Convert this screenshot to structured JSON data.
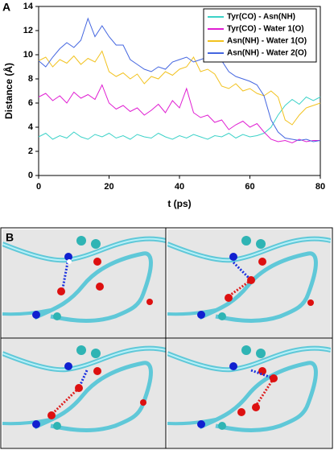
{
  "chart_data": {
    "type": "line",
    "panel_label": "A",
    "xlabel": "t (ps)",
    "ylabel": "Distance (Å)",
    "x": [
      0,
      2,
      4,
      6,
      8,
      10,
      12,
      14,
      16,
      18,
      20,
      22,
      24,
      26,
      28,
      30,
      32,
      34,
      36,
      38,
      40,
      42,
      44,
      46,
      48,
      50,
      52,
      54,
      56,
      58,
      60,
      62,
      64,
      66,
      68,
      70,
      72,
      74,
      76,
      78,
      80
    ],
    "series": [
      {
        "name": "Tyr(CO) - Asn(NH)",
        "color": "#3cd2c8",
        "values": [
          3.2,
          3.5,
          3.0,
          3.3,
          3.1,
          3.6,
          3.2,
          3.0,
          3.4,
          3.2,
          3.5,
          3.1,
          3.3,
          3.0,
          3.4,
          3.2,
          3.1,
          3.5,
          3.2,
          3.0,
          3.3,
          3.1,
          3.4,
          3.2,
          3.0,
          3.3,
          3.2,
          3.5,
          3.1,
          3.4,
          3.2,
          3.3,
          3.5,
          4.0,
          5.0,
          5.8,
          6.3,
          5.9,
          6.5,
          6.2,
          6.5
        ]
      },
      {
        "name": "Tyr(CO) - Water 1(O)",
        "color": "#e01ed2",
        "values": [
          6.5,
          6.8,
          6.2,
          6.6,
          6.0,
          6.9,
          6.4,
          6.7,
          6.3,
          7.5,
          6.0,
          5.5,
          5.8,
          5.3,
          5.6,
          5.0,
          5.4,
          5.9,
          5.2,
          6.2,
          5.6,
          7.2,
          5.2,
          4.8,
          5.0,
          4.4,
          4.6,
          3.8,
          4.2,
          4.5,
          4.0,
          4.3,
          3.6,
          3.0,
          2.8,
          2.9,
          2.7,
          3.0,
          2.8,
          2.9,
          2.9
        ]
      },
      {
        "name": "Asn(NH) - Water 1(O)",
        "color": "#f2c21e",
        "values": [
          9.5,
          9.8,
          9.0,
          9.6,
          9.3,
          9.9,
          9.2,
          9.7,
          9.4,
          10.3,
          8.6,
          8.2,
          8.5,
          8.0,
          8.4,
          7.6,
          8.2,
          8.0,
          8.6,
          8.3,
          8.8,
          9.0,
          9.8,
          8.6,
          8.8,
          8.4,
          7.4,
          7.2,
          7.6,
          7.0,
          7.2,
          6.8,
          6.6,
          7.0,
          6.5,
          4.6,
          4.2,
          5.0,
          5.6,
          5.8,
          6.0
        ]
      },
      {
        "name": "Asn(NH) - Water 2(O)",
        "color": "#4466e0",
        "values": [
          9.5,
          9.0,
          9.8,
          10.5,
          11.0,
          10.6,
          11.2,
          13.0,
          11.5,
          12.4,
          11.5,
          10.8,
          10.8,
          9.6,
          9.2,
          8.8,
          8.6,
          9.0,
          8.8,
          9.4,
          9.6,
          9.8,
          9.4,
          9.6,
          9.8,
          10.0,
          9.5,
          8.6,
          8.2,
          8.0,
          7.8,
          7.5,
          6.6,
          4.6,
          3.6,
          3.1,
          3.0,
          2.9,
          3.0,
          2.8,
          2.9
        ]
      }
    ],
    "xlim": [
      0,
      80
    ],
    "xticks": [
      0,
      20,
      40,
      60,
      80
    ],
    "ylim": [
      0,
      14
    ],
    "yticks": [
      0,
      2,
      4,
      6,
      8,
      10,
      12,
      14
    ],
    "legend": "upper right"
  },
  "panel_b": {
    "label": "B"
  }
}
